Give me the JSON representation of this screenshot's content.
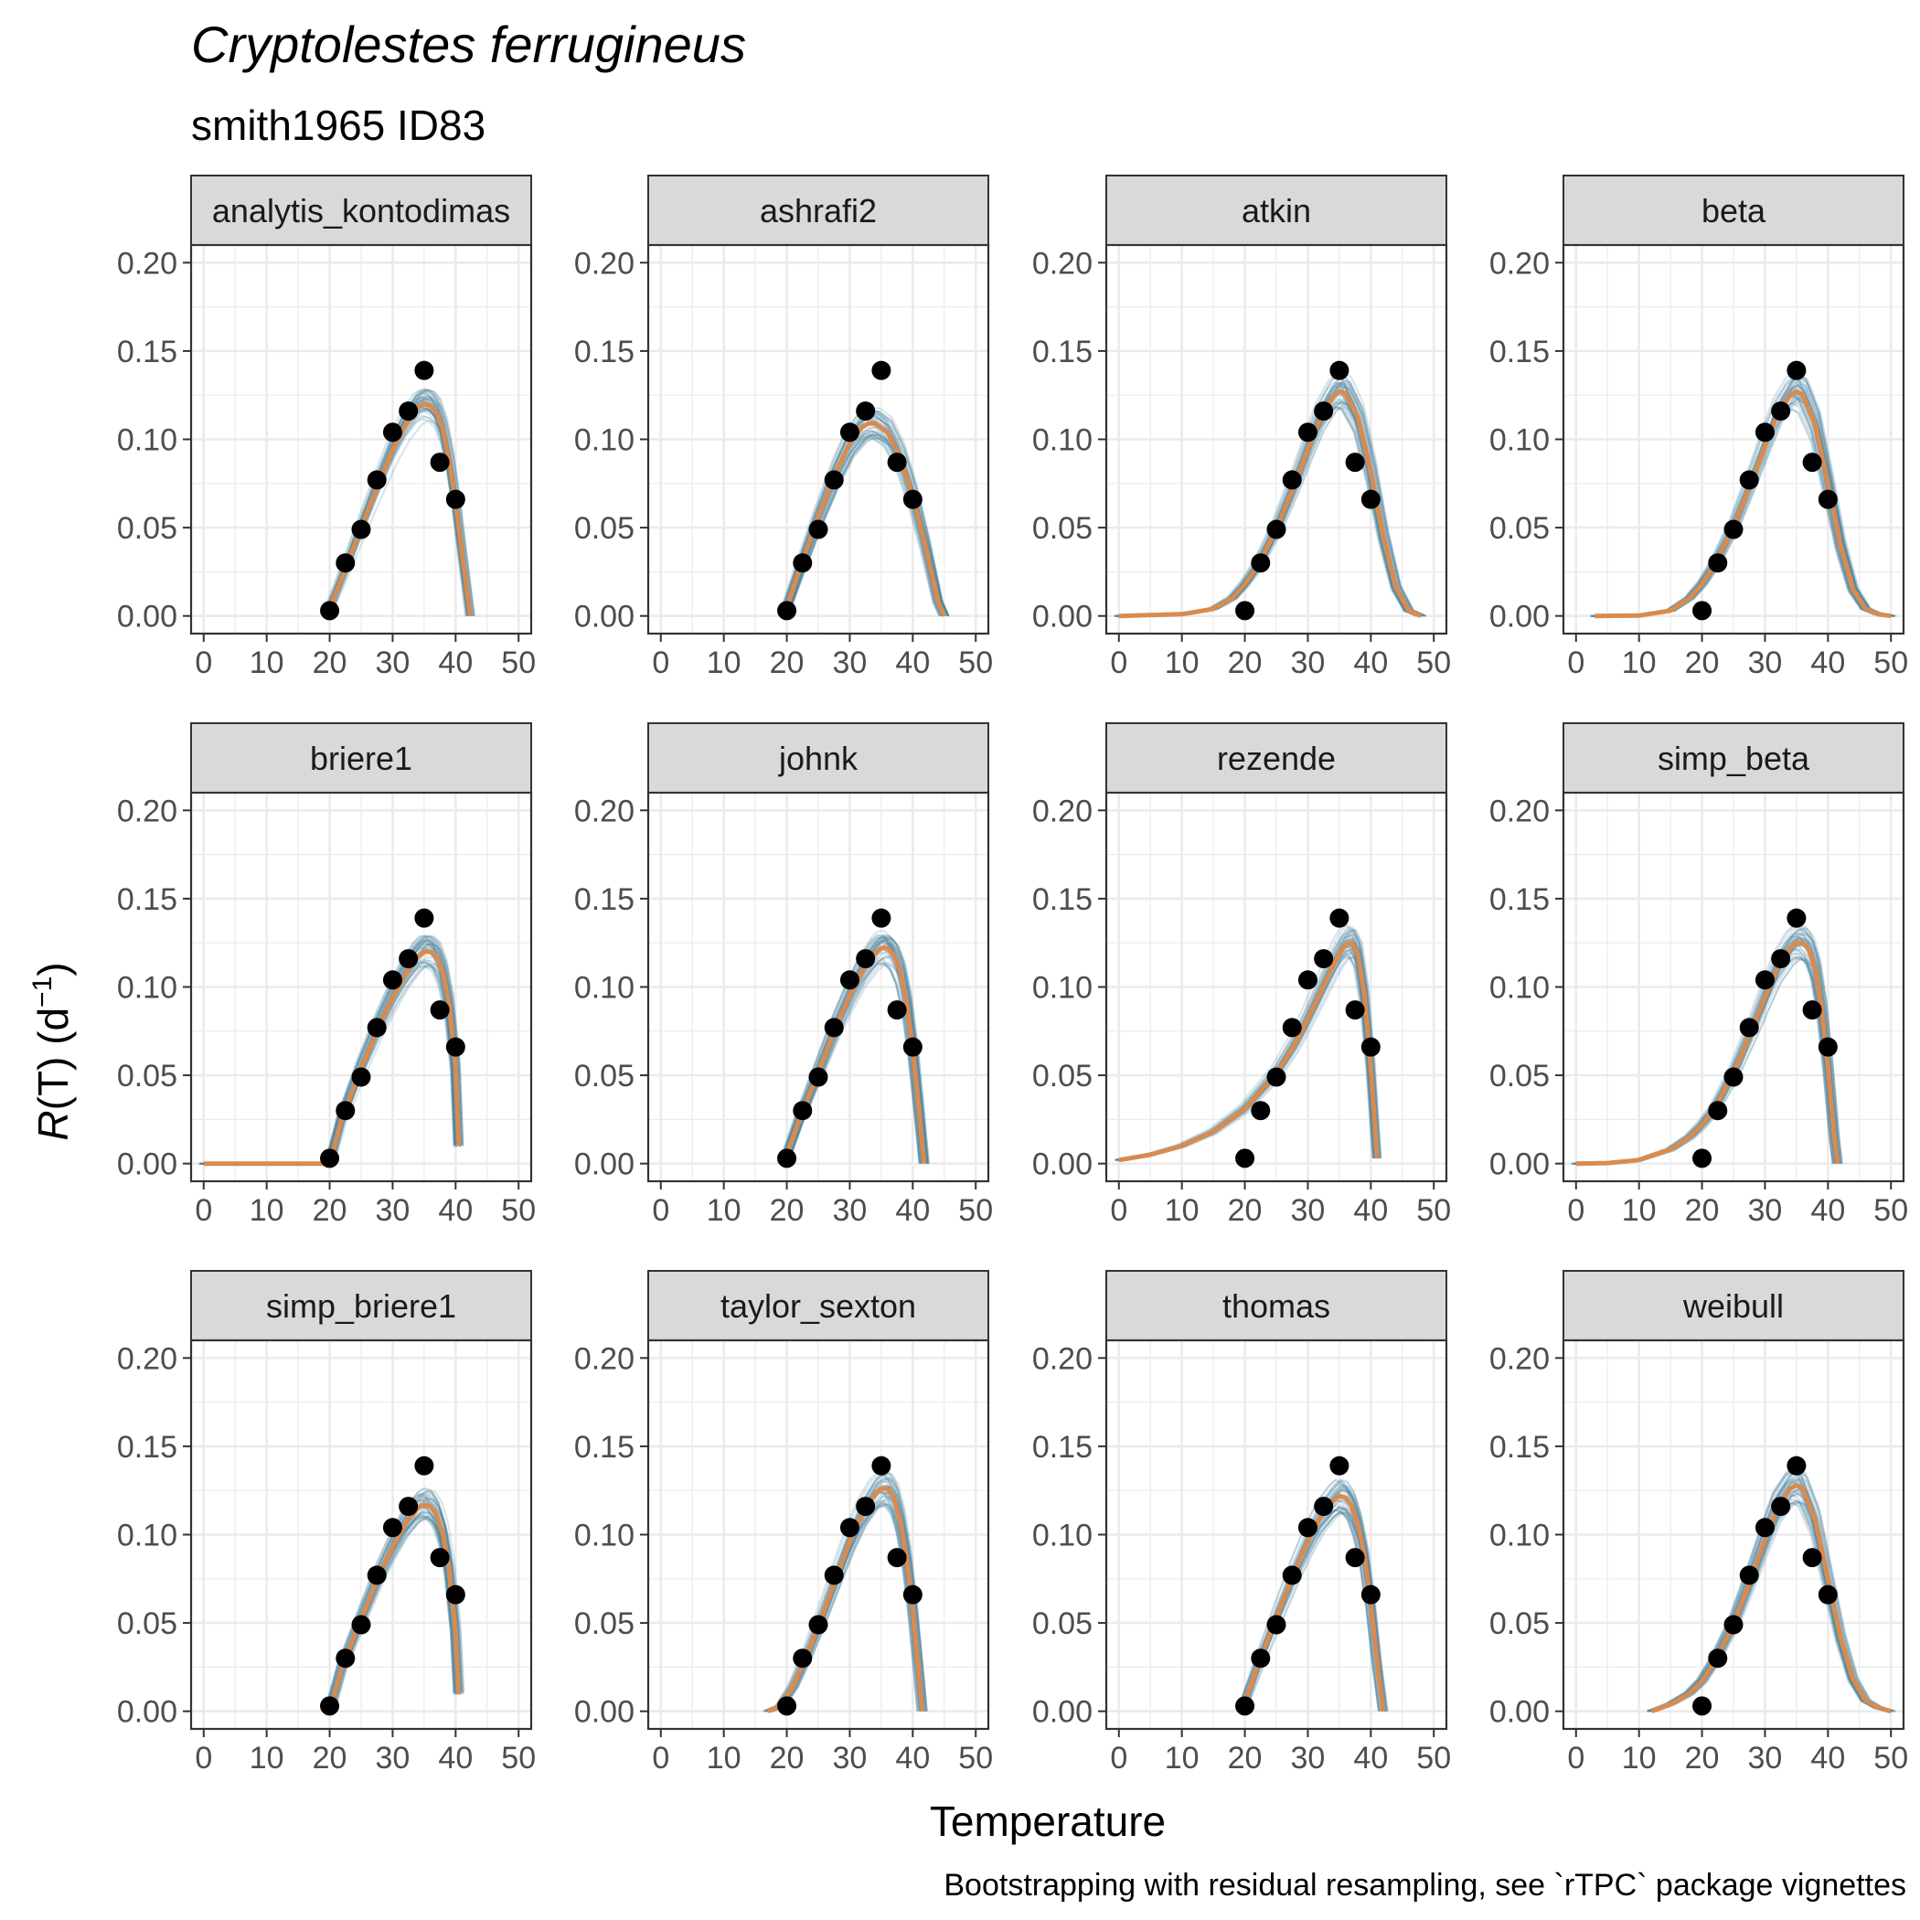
{
  "title": "Cryptolestes ferrugineus",
  "subtitle": "smith1965 ID83",
  "caption": "Bootstrapping with residual resampling, see `rTPC` package vignettes",
  "xlabel": "Temperature",
  "ylabel_main": "R",
  "ylabel_rest": "(T) (d",
  "ylabel_sup": "−1",
  "ylabel_close": ")",
  "colors": {
    "points": "#000000",
    "fit": "#d98b4e",
    "bootstrap": "#4a7f99",
    "strip_bg": "#d9d9d9",
    "grid": "#ebebeb",
    "panel_border": "#333333"
  },
  "chart_data": {
    "type": "line",
    "layout": "facet-grid 3x4",
    "xlim": [
      -2,
      52
    ],
    "ylim": [
      -0.01,
      0.21
    ],
    "x_ticks": [
      0,
      10,
      20,
      30,
      40,
      50
    ],
    "x_tick_labels": [
      "0",
      "10",
      "20",
      "30",
      "40",
      "50"
    ],
    "y_ticks": [
      0.0,
      0.05,
      0.1,
      0.15,
      0.2
    ],
    "y_tick_labels": [
      "0.00",
      "0.05",
      "0.10",
      "0.15",
      "0.20"
    ],
    "observed": {
      "x": [
        20,
        22.5,
        25,
        27.5,
        30,
        32.5,
        35,
        37.5,
        40
      ],
      "y": [
        0.003,
        0.03,
        0.049,
        0.077,
        0.104,
        0.116,
        0.139,
        0.087,
        0.066
      ]
    },
    "panels": [
      {
        "name": "analytis_kontodimas",
        "fit_x": [
          19.5,
          22,
          25,
          28,
          30,
          32,
          34,
          35,
          36,
          37,
          38,
          39,
          40,
          41,
          42.3
        ],
        "fit_y": [
          0.0,
          0.022,
          0.05,
          0.077,
          0.094,
          0.108,
          0.118,
          0.12,
          0.119,
          0.115,
          0.105,
          0.088,
          0.064,
          0.036,
          0.0
        ]
      },
      {
        "name": "ashrafi2",
        "fit_x": [
          19.5,
          22,
          25,
          28,
          30,
          32,
          33,
          34,
          36,
          38,
          40,
          42,
          44,
          45
        ],
        "fit_y": [
          0.0,
          0.026,
          0.056,
          0.083,
          0.098,
          0.107,
          0.109,
          0.109,
          0.104,
          0.09,
          0.068,
          0.04,
          0.008,
          0.0
        ]
      },
      {
        "name": "atkin",
        "fit_x": [
          0,
          5,
          10,
          15,
          18,
          20,
          22,
          25,
          28,
          30,
          32,
          34,
          35,
          36,
          38,
          40,
          42,
          44,
          46,
          48
        ],
        "fit_y": [
          0.0,
          0.0005,
          0.001,
          0.004,
          0.01,
          0.018,
          0.028,
          0.049,
          0.075,
          0.094,
          0.112,
          0.124,
          0.127,
          0.126,
          0.112,
          0.082,
          0.045,
          0.016,
          0.003,
          0.0
        ]
      },
      {
        "name": "beta",
        "fit_x": [
          3,
          10,
          15,
          18,
          20,
          22,
          25,
          28,
          30,
          32,
          34,
          35,
          36,
          38,
          40,
          42,
          44,
          46,
          48,
          50
        ],
        "fit_y": [
          0.0,
          0.0002,
          0.003,
          0.01,
          0.018,
          0.029,
          0.05,
          0.077,
          0.096,
          0.114,
          0.125,
          0.127,
          0.125,
          0.108,
          0.075,
          0.04,
          0.015,
          0.004,
          0.001,
          0.0
        ]
      },
      {
        "name": "briere1",
        "fit_x": [
          0,
          10,
          19.5,
          20,
          22,
          25,
          28,
          30,
          32,
          34,
          35,
          36,
          37,
          38,
          39,
          40,
          40.5
        ],
        "fit_y": [
          0.0,
          0.0,
          0.0,
          0.0,
          0.026,
          0.054,
          0.079,
          0.094,
          0.107,
          0.117,
          0.12,
          0.12,
          0.117,
          0.108,
          0.09,
          0.055,
          0.01
        ]
      },
      {
        "name": "johnk",
        "fit_x": [
          19.5,
          22,
          25,
          28,
          30,
          32,
          34,
          35,
          36,
          37,
          38,
          39,
          40,
          41,
          41.8
        ],
        "fit_y": [
          0.0,
          0.025,
          0.052,
          0.079,
          0.095,
          0.109,
          0.119,
          0.122,
          0.122,
          0.118,
          0.109,
          0.092,
          0.065,
          0.03,
          0.0
        ]
      },
      {
        "name": "rezende",
        "fit_x": [
          0,
          5,
          10,
          15,
          20,
          25,
          28,
          30,
          32,
          34,
          35,
          36,
          37,
          38,
          39,
          40,
          41
        ],
        "fit_y": [
          0.002,
          0.005,
          0.01,
          0.018,
          0.031,
          0.051,
          0.068,
          0.082,
          0.097,
          0.112,
          0.119,
          0.124,
          0.125,
          0.118,
          0.095,
          0.055,
          0.003
        ]
      },
      {
        "name": "simp_beta",
        "fit_x": [
          0,
          5,
          10,
          15,
          18,
          20,
          22,
          25,
          28,
          30,
          32,
          34,
          35,
          36,
          37,
          38,
          39,
          40,
          41,
          41.5
        ],
        "fit_y": [
          0.0,
          0.0003,
          0.002,
          0.008,
          0.015,
          0.022,
          0.031,
          0.051,
          0.076,
          0.094,
          0.111,
          0.122,
          0.125,
          0.125,
          0.121,
          0.11,
          0.088,
          0.055,
          0.015,
          0.0
        ]
      },
      {
        "name": "simp_briere1",
        "fit_x": [
          20,
          22,
          25,
          28,
          30,
          32,
          34,
          35,
          36,
          37,
          38,
          39,
          40,
          40.5
        ],
        "fit_y": [
          0.0,
          0.025,
          0.052,
          0.078,
          0.093,
          0.106,
          0.115,
          0.117,
          0.116,
          0.111,
          0.1,
          0.08,
          0.045,
          0.01
        ]
      },
      {
        "name": "taylor_sexton",
        "fit_x": [
          17,
          19,
          21,
          23,
          25,
          28,
          30,
          32,
          34,
          35,
          36,
          37,
          38,
          39,
          40,
          41,
          41.5
        ],
        "fit_y": [
          0.0,
          0.003,
          0.014,
          0.03,
          0.048,
          0.077,
          0.096,
          0.112,
          0.123,
          0.126,
          0.126,
          0.121,
          0.108,
          0.087,
          0.057,
          0.02,
          0.0
        ]
      },
      {
        "name": "thomas",
        "fit_x": [
          19.5,
          22,
          25,
          28,
          30,
          32,
          34,
          35,
          36,
          37,
          38,
          39,
          40,
          41,
          42
        ],
        "fit_y": [
          0.0,
          0.025,
          0.053,
          0.08,
          0.096,
          0.11,
          0.119,
          0.122,
          0.121,
          0.116,
          0.105,
          0.088,
          0.062,
          0.028,
          0.0
        ]
      },
      {
        "name": "weibull",
        "fit_x": [
          12,
          15,
          18,
          20,
          22,
          25,
          28,
          30,
          32,
          34,
          35,
          36,
          38,
          40,
          42,
          44,
          46,
          48,
          50
        ],
        "fit_y": [
          0.0,
          0.004,
          0.01,
          0.017,
          0.028,
          0.049,
          0.077,
          0.097,
          0.116,
          0.126,
          0.128,
          0.126,
          0.108,
          0.075,
          0.042,
          0.018,
          0.006,
          0.002,
          0.0
        ]
      }
    ]
  }
}
